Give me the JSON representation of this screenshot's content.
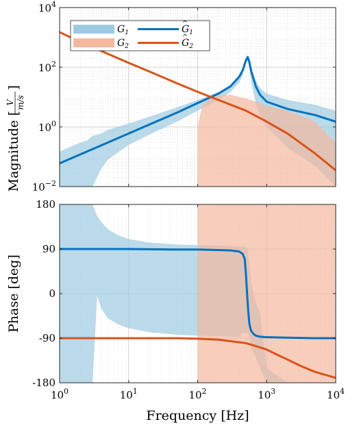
{
  "chart_data": [
    {
      "type": "area",
      "subplot": "magnitude",
      "xscale": "log",
      "yscale": "log",
      "xlim": [
        1,
        10000
      ],
      "ylim": [
        0.01,
        10000
      ],
      "grid": true,
      "ylabel": "Magnitude [V/(m/s)]",
      "ylabel_main": "Magnitude [",
      "ylabel_frac_num": "V",
      "ylabel_frac_den": "m/s",
      "ylabel_close": "]",
      "xticks": [
        1,
        10,
        100,
        1000,
        10000
      ],
      "yticks": [
        {
          "value": 0.01,
          "base": "10",
          "exp": "−2"
        },
        {
          "value": 1,
          "base": "10",
          "exp": "0"
        },
        {
          "value": 100,
          "base": "10",
          "exp": "2"
        },
        {
          "value": 10000,
          "base": "10",
          "exp": "4"
        }
      ],
      "legend": {
        "placement": "top-left",
        "entries": [
          {
            "base": "G",
            "sub": "1",
            "hat": false,
            "style": "band",
            "color": "#9ecae1"
          },
          {
            "base": "G",
            "sub": "1",
            "hat": true,
            "style": "line",
            "color": "#0072BD"
          },
          {
            "base": "G",
            "sub": "2",
            "hat": false,
            "style": "band",
            "color": "#f4b8a0"
          },
          {
            "base": "G",
            "sub": "2",
            "hat": true,
            "style": "line",
            "color": "#D95319"
          }
        ]
      },
      "series": [
        {
          "name": "Ĝ1",
          "style": "line",
          "color": "#0072BD",
          "x": [
            1,
            2,
            5,
            10,
            20,
            50,
            100,
            200,
            300,
            400,
            450,
            500,
            530,
            560,
            600,
            700,
            800,
            1000,
            2000,
            5000,
            10000
          ],
          "y": [
            0.06,
            0.12,
            0.3,
            0.6,
            1.2,
            3.0,
            6.3,
            13,
            23,
            48,
            80,
            170,
            220,
            150,
            70,
            22,
            12,
            7,
            4,
            2.5,
            1.5
          ]
        },
        {
          "name": "G1",
          "style": "band",
          "color": "#9ecae1",
          "x": [
            1,
            2,
            2.5,
            3,
            4,
            5,
            10,
            20,
            50,
            100,
            200,
            300,
            400,
            450,
            500,
            530,
            560,
            600,
            700,
            800,
            1000,
            2000,
            5000,
            10000
          ],
          "upper": [
            0.15,
            0.3,
            0.35,
            0.5,
            0.6,
            0.8,
            1.3,
            2.2,
            4.5,
            8,
            15,
            26,
            55,
            90,
            190,
            250,
            180,
            90,
            35,
            20,
            13,
            8,
            5.5,
            3.5
          ],
          "lower": [
            0.01,
            0.01,
            0.01,
            0.01,
            0.04,
            0.08,
            0.25,
            0.55,
            1.5,
            3.5,
            8,
            15,
            30,
            55,
            130,
            175,
            100,
            30,
            6,
            2.5,
            1.0,
            0.2,
            0.05,
            0.01
          ]
        },
        {
          "name": "Ĝ2",
          "style": "line",
          "color": "#D95319",
          "x": [
            1,
            2,
            5,
            10,
            20,
            50,
            100,
            200,
            500,
            1000,
            2000,
            5000,
            10000
          ],
          "y": [
            1500,
            700,
            280,
            140,
            72,
            29,
            15,
            8,
            3.5,
            1.5,
            0.6,
            0.13,
            0.035
          ],
          "ref_x": [
            300,
            500,
            1000,
            2000,
            5000,
            10000
          ],
          "ref_y": [
            4.5,
            3.2,
            1.5,
            0.55,
            0.12,
            0.035
          ]
        },
        {
          "name": "G2",
          "style": "band",
          "color": "#f4b8a0",
          "x": [
            100,
            110,
            120,
            150,
            200,
            300,
            500,
            700,
            1000,
            2000,
            5000,
            10000
          ],
          "upper": [
            1.0,
            3.0,
            5.5,
            9,
            11,
            12,
            9,
            7,
            5,
            3.5,
            1.5,
            0.3
          ],
          "lower": [
            0.01,
            0.01,
            0.01,
            0.01,
            0.01,
            0.01,
            0.01,
            0.01,
            0.01,
            0.01,
            0.01,
            0.01
          ]
        }
      ]
    },
    {
      "type": "area",
      "subplot": "phase",
      "xscale": "log",
      "yscale": "linear",
      "xlim": [
        1,
        10000
      ],
      "ylim": [
        -180,
        180
      ],
      "grid": true,
      "xlabel": "Frequency [Hz]",
      "ylabel": "Phase [deg]",
      "xticks": [
        {
          "value": 1,
          "base": "10",
          "exp": "0"
        },
        {
          "value": 10,
          "base": "10",
          "exp": "1"
        },
        {
          "value": 100,
          "base": "10",
          "exp": "2"
        },
        {
          "value": 1000,
          "base": "10",
          "exp": "3"
        },
        {
          "value": 10000,
          "base": "10",
          "exp": "4"
        }
      ],
      "yticks": [
        {
          "value": 180,
          "label": "180"
        },
        {
          "value": 90,
          "label": "90"
        },
        {
          "value": 0,
          "label": "0"
        },
        {
          "value": -90,
          "label": "-90"
        },
        {
          "value": -180,
          "label": "-180"
        }
      ],
      "series": [
        {
          "name": "G1",
          "style": "band",
          "color": "#9ecae1",
          "x": [
            1,
            3
          ],
          "upper": [
            180,
            180
          ],
          "lower": [
            -180,
            -180
          ]
        },
        {
          "name": "G1",
          "style": "band",
          "color": "#9ecae1",
          "x": [
            3,
            3.5,
            4,
            5,
            7,
            10,
            20,
            50,
            100,
            200,
            300,
            400,
            450,
            500,
            530,
            560,
            600,
            700,
            800,
            1000,
            2000,
            5000,
            10000
          ],
          "upper": [
            180,
            157,
            145,
            130,
            118,
            110,
            103,
            99,
            98,
            97,
            96,
            95,
            95,
            94,
            90,
            60,
            20,
            -20,
            -40,
            -150,
            -180,
            -180,
            -180
          ],
          "lower": [
            -180,
            -5,
            -30,
            -50,
            -62,
            -70,
            -78,
            -83,
            -85,
            -86,
            -87,
            -88,
            -80,
            -80,
            -80,
            -90,
            -110,
            -130,
            -150,
            -180,
            -180,
            -180,
            -180
          ]
        },
        {
          "name": "G2",
          "style": "band",
          "color": "#f4b8a0",
          "x": [
            100,
            1000,
            1000,
            10000
          ],
          "upper": [
            180,
            180,
            180,
            180
          ],
          "lower": [
            -180,
            -180,
            -180,
            -180
          ]
        },
        {
          "name": "Ĝ1",
          "style": "line",
          "color": "#0072BD",
          "x": [
            1,
            10,
            50,
            100,
            200,
            300,
            400,
            450,
            480,
            500,
            520,
            540,
            560,
            580,
            600,
            650,
            700,
            800,
            1000,
            2000,
            5000,
            10000
          ],
          "y": [
            90,
            90,
            89,
            89,
            88,
            87,
            85,
            80,
            70,
            40,
            0,
            -35,
            -60,
            -70,
            -76,
            -82,
            -85,
            -87,
            -88,
            -89,
            -90,
            -90
          ]
        },
        {
          "name": "Ĝ2",
          "style": "line",
          "color": "#D95319",
          "x": [
            1,
            10,
            50,
            100,
            200,
            300,
            500,
            700,
            1000,
            1500,
            2000,
            3000,
            5000,
            10000
          ],
          "y": [
            -90,
            -90,
            -90,
            -91,
            -93,
            -96,
            -100,
            -106,
            -113,
            -125,
            -133,
            -145,
            -158,
            -170
          ]
        }
      ]
    }
  ]
}
